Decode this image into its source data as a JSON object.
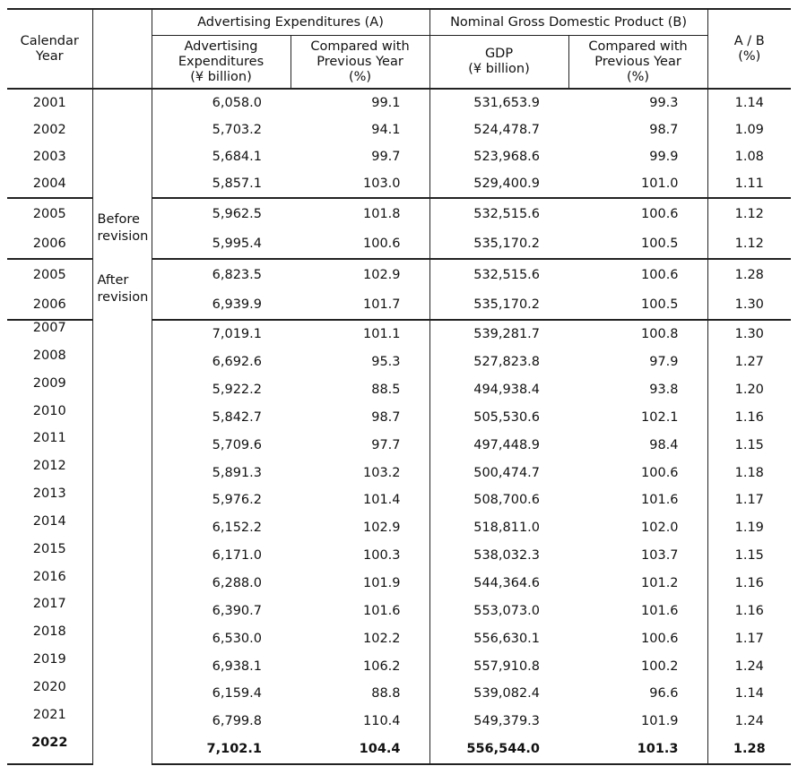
{
  "headers": {
    "year": "Calendar\nYear",
    "group_a": "Advertising Expenditures (A)",
    "group_b": "Nominal Gross Domestic Product (B)",
    "ratio": "A / B\n(%)",
    "adv": "Advertising\nExpenditures\n(¥ billion)",
    "adv_prev": "Compared with\nPrevious Year\n(%)",
    "gdp": "GDP\n(¥ billion)",
    "gdp_prev": "Compared with\nPrevious Year\n(%)"
  },
  "groups": [
    {
      "note": "",
      "rows": [
        {
          "year": "2001",
          "adv": "6,058.0",
          "adv_prev": "99.1",
          "gdp": "531,653.9",
          "gdp_prev": "99.3",
          "ratio": "1.14"
        },
        {
          "year": "2002",
          "adv": "5,703.2",
          "adv_prev": "94.1",
          "gdp": "524,478.7",
          "gdp_prev": "98.7",
          "ratio": "1.09"
        },
        {
          "year": "2003",
          "adv": "5,684.1",
          "adv_prev": "99.7",
          "gdp": "523,968.6",
          "gdp_prev": "99.9",
          "ratio": "1.08"
        },
        {
          "year": "2004",
          "adv": "5,857.1",
          "adv_prev": "103.0",
          "gdp": "529,400.9",
          "gdp_prev": "101.0",
          "ratio": "1.11"
        }
      ]
    },
    {
      "note": "Before\nrevision",
      "rows": [
        {
          "year": "2005",
          "adv": "5,962.5",
          "adv_prev": "101.8",
          "gdp": "532,515.6",
          "gdp_prev": "100.6",
          "ratio": "1.12"
        },
        {
          "year": "2006",
          "adv": "5,995.4",
          "adv_prev": "100.6",
          "gdp": "535,170.2",
          "gdp_prev": "100.5",
          "ratio": "1.12"
        }
      ]
    },
    {
      "note": "After\nrevision",
      "rows": [
        {
          "year": "2005",
          "adv": "6,823.5",
          "adv_prev": "102.9",
          "gdp": "532,515.6",
          "gdp_prev": "100.6",
          "ratio": "1.28"
        },
        {
          "year": "2006",
          "adv": "6,939.9",
          "adv_prev": "101.7",
          "gdp": "535,170.2",
          "gdp_prev": "100.5",
          "ratio": "1.30"
        }
      ]
    },
    {
      "note": "",
      "rows": [
        {
          "year": "2007",
          "adv": "7,019.1",
          "adv_prev": "101.1",
          "gdp": "539,281.7",
          "gdp_prev": "100.8",
          "ratio": "1.30"
        },
        {
          "year": "2008",
          "adv": "6,692.6",
          "adv_prev": "95.3",
          "gdp": "527,823.8",
          "gdp_prev": "97.9",
          "ratio": "1.27"
        },
        {
          "year": "2009",
          "adv": "5,922.2",
          "adv_prev": "88.5",
          "gdp": "494,938.4",
          "gdp_prev": "93.8",
          "ratio": "1.20"
        },
        {
          "year": "2010",
          "adv": "5,842.7",
          "adv_prev": "98.7",
          "gdp": "505,530.6",
          "gdp_prev": "102.1",
          "ratio": "1.16"
        },
        {
          "year": "2011",
          "adv": "5,709.6",
          "adv_prev": "97.7",
          "gdp": "497,448.9",
          "gdp_prev": "98.4",
          "ratio": "1.15"
        },
        {
          "year": "2012",
          "adv": "5,891.3",
          "adv_prev": "103.2",
          "gdp": "500,474.7",
          "gdp_prev": "100.6",
          "ratio": "1.18"
        },
        {
          "year": "2013",
          "adv": "5,976.2",
          "adv_prev": "101.4",
          "gdp": "508,700.6",
          "gdp_prev": "101.6",
          "ratio": "1.17"
        },
        {
          "year": "2014",
          "adv": "6,152.2",
          "adv_prev": "102.9",
          "gdp": "518,811.0",
          "gdp_prev": "102.0",
          "ratio": "1.19"
        },
        {
          "year": "2015",
          "adv": "6,171.0",
          "adv_prev": "100.3",
          "gdp": "538,032.3",
          "gdp_prev": "103.7",
          "ratio": "1.15"
        },
        {
          "year": "2016",
          "adv": "6,288.0",
          "adv_prev": "101.9",
          "gdp": "544,364.6",
          "gdp_prev": "101.2",
          "ratio": "1.16"
        },
        {
          "year": "2017",
          "adv": "6,390.7",
          "adv_prev": "101.6",
          "gdp": "553,073.0",
          "gdp_prev": "101.6",
          "ratio": "1.16"
        },
        {
          "year": "2018",
          "adv": "6,530.0",
          "adv_prev": "102.2",
          "gdp": "556,630.1",
          "gdp_prev": "100.6",
          "ratio": "1.17"
        },
        {
          "year": "2019",
          "adv": "6,938.1",
          "adv_prev": "106.2",
          "gdp": "557,910.8",
          "gdp_prev": "100.2",
          "ratio": "1.24"
        },
        {
          "year": "2020",
          "adv": "6,159.4",
          "adv_prev": "88.8",
          "gdp": "539,082.4",
          "gdp_prev": "96.6",
          "ratio": "1.14"
        },
        {
          "year": "2021",
          "adv": "6,799.8",
          "adv_prev": "110.4",
          "gdp": "549,379.3",
          "gdp_prev": "101.9",
          "ratio": "1.24"
        },
        {
          "year": "2022",
          "adv": "7,102.1",
          "adv_prev": "104.4",
          "gdp": "556,544.0",
          "gdp_prev": "101.3",
          "ratio": "1.28",
          "bold": true
        }
      ]
    }
  ]
}
